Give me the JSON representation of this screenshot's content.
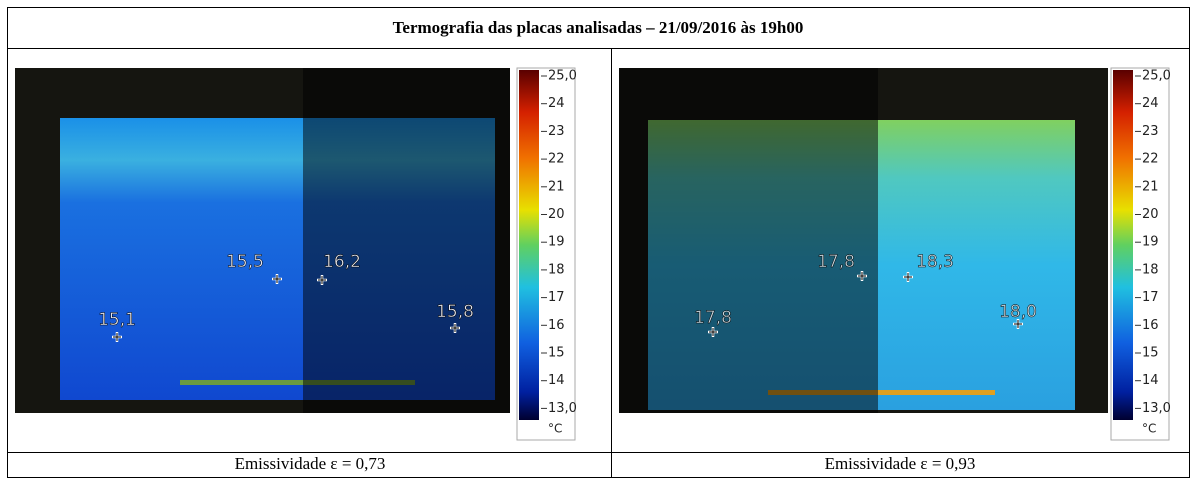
{
  "title": "Termografia das placas analisadas – 21/09/2016 às 19h00",
  "panels": [
    {
      "spots": [
        "15,5",
        "16,2",
        "15,8",
        "15,1"
      ],
      "scale": {
        "ticks": [
          "25,0",
          "24",
          "23",
          "22",
          "21",
          "20",
          "19",
          "18",
          "17",
          "16",
          "15",
          "14",
          "13,0"
        ],
        "unit": "°C"
      },
      "caption": "Emissividade ε = 0,73"
    },
    {
      "spots": [
        "17,8",
        "18,3",
        "18,0",
        "17,8"
      ],
      "scale": {
        "ticks": [
          "25,0",
          "24",
          "23",
          "22",
          "21",
          "20",
          "19",
          "18",
          "17",
          "16",
          "15",
          "14",
          "13,0"
        ],
        "unit": "°C"
      },
      "caption": "Emissividade ε = 0,93"
    }
  ]
}
